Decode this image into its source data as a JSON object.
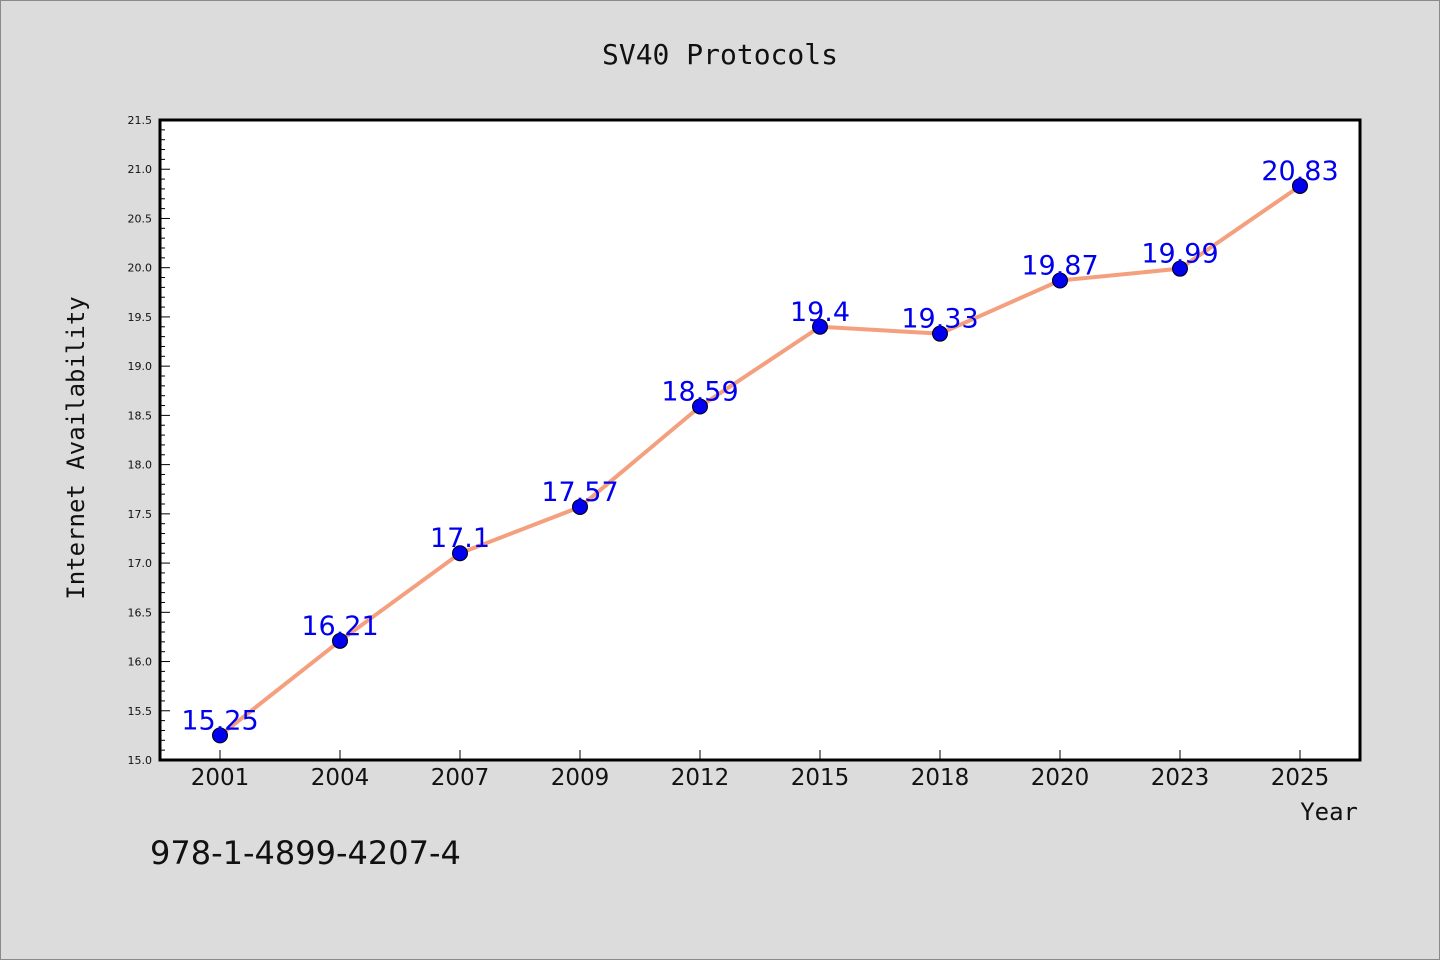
{
  "chart_data": {
    "type": "line",
    "title": "SV40 Protocols",
    "xlabel": "Year",
    "ylabel": "Internet Availability",
    "categories": [
      "2001",
      "2004",
      "2007",
      "2009",
      "2012",
      "2015",
      "2018",
      "2020",
      "2023",
      "2025"
    ],
    "values": [
      15.25,
      16.21,
      17.1,
      17.57,
      18.59,
      19.4,
      19.33,
      19.87,
      19.99,
      20.83
    ],
    "data_labels": [
      "15.25",
      "16.21",
      "17.1",
      "17.57",
      "18.59",
      "19.4",
      "19.33",
      "19.87",
      "19.99",
      "20.83"
    ],
    "ylim": [
      15.0,
      21.5
    ],
    "yticks": [
      "15.0",
      "15.5",
      "16.0",
      "16.5",
      "17.0",
      "17.5",
      "18.0",
      "18.5",
      "19.0",
      "19.5",
      "20.0",
      "20.5",
      "21.0",
      "21.5"
    ],
    "grid": false,
    "line_color": "#f4a07e",
    "marker_color": "#0000ee",
    "label_color": "#0000ee"
  },
  "footer": {
    "isbn": "978-1-4899-4207-4"
  }
}
